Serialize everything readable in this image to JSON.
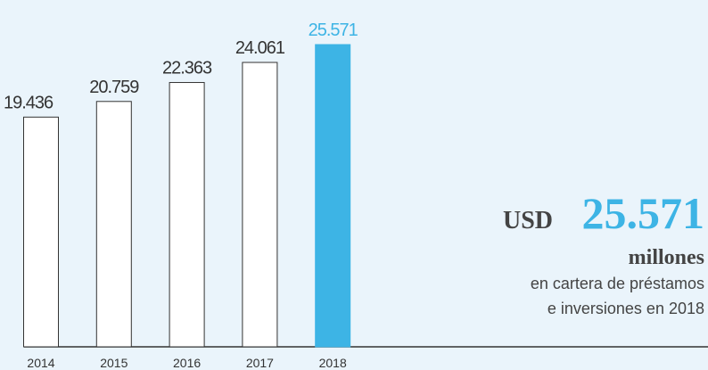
{
  "chart_data": {
    "type": "bar",
    "categories": [
      "2014",
      "2015",
      "2016",
      "2017",
      "2018"
    ],
    "values": [
      19436,
      20759,
      22363,
      24061,
      25571
    ],
    "value_labels": [
      "19.436",
      "20.759",
      "22.363",
      "24.061",
      "25.571"
    ],
    "colors": [
      "#ffffff",
      "#ffffff",
      "#ffffff",
      "#ffffff",
      "#3db4e5"
    ],
    "label_colors": [
      "#333333",
      "#333333",
      "#333333",
      "#333333",
      "#3db4e5"
    ],
    "annotation": {
      "currency": "USD",
      "amount": "25.571",
      "unit": "millones",
      "lines": [
        "en cartera de préstamos",
        "e inversiones en 2018"
      ]
    }
  }
}
